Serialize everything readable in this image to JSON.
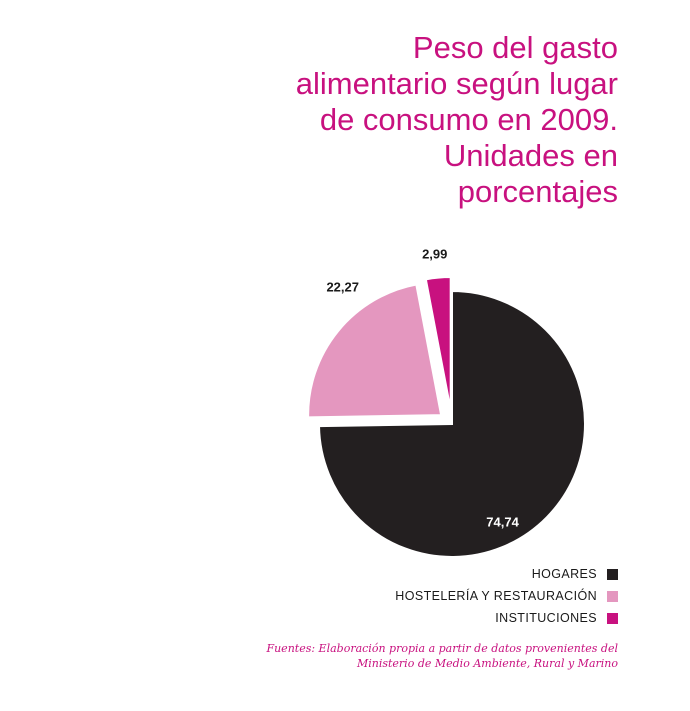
{
  "title_lines": [
    "Peso del gasto",
    "alimentario según lugar",
    "de consumo en 2009.",
    "Unidades en",
    "porcentajes"
  ],
  "chart_data": {
    "type": "pie",
    "slices": [
      {
        "name": "HOGARES",
        "value": 74.74,
        "label": "74,74",
        "color": "#231f20"
      },
      {
        "name": "HOSTELERÍA Y RESTAURACIÓN",
        "value": 22.27,
        "label": "22,27",
        "color": "#e497bf"
      },
      {
        "name": "INSTITUCIONES",
        "value": 2.99,
        "label": "2,99",
        "color": "#c8117f"
      }
    ],
    "legend_position": "bottom-right"
  },
  "legend": [
    {
      "label": "HOGARES",
      "color": "#231f20"
    },
    {
      "label": "HOSTELERÍA Y RESTAURACIÓN",
      "color": "#e497bf"
    },
    {
      "label": "INSTITUCIONES",
      "color": "#c8117f"
    }
  ],
  "source_lines": [
    "Fuentes: Elaboración propia a partir de datos provenientes del",
    "Ministerio de Medio Ambiente, Rural y Marino"
  ]
}
